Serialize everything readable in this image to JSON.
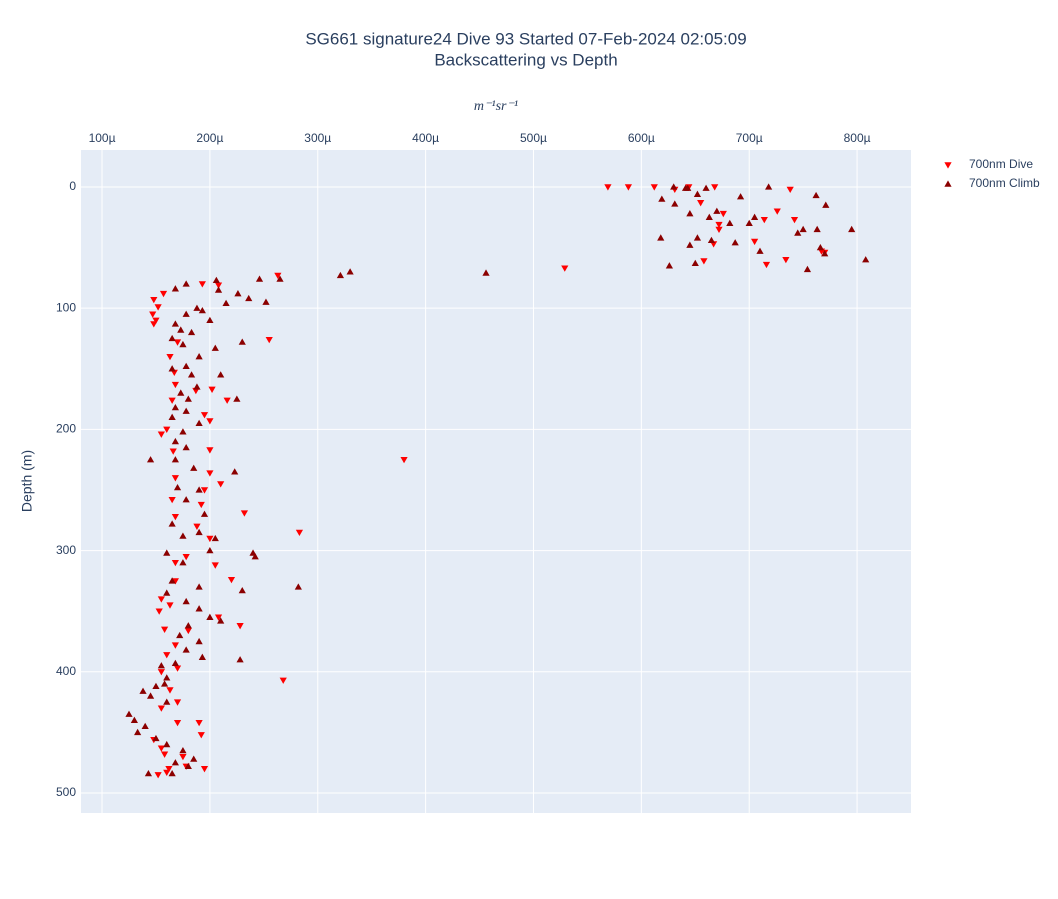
{
  "chart_data": {
    "type": "scatter",
    "title": "SG661 signature24 Dive 93 Started 07-Feb-2024 02:05:09",
    "subtitle": "Backscattering vs Depth",
    "x_label": "m⁻¹sr⁻¹",
    "y_label": "Depth (m)",
    "x_axis_side": "top",
    "y_reversed": true,
    "grid": true,
    "legend_position": "right",
    "xlim": [
      8.05e-05,
      0.00085
    ],
    "ylim": [
      -30.5,
      516.5
    ],
    "xticks": [
      {
        "value": 0.0001,
        "label": "100µ"
      },
      {
        "value": 0.0002,
        "label": "200µ"
      },
      {
        "value": 0.0003,
        "label": "300µ"
      },
      {
        "value": 0.0004,
        "label": "400µ"
      },
      {
        "value": 0.0005,
        "label": "500µ"
      },
      {
        "value": 0.0006,
        "label": "600µ"
      },
      {
        "value": 0.0007,
        "label": "700µ"
      },
      {
        "value": 0.0008,
        "label": "800µ"
      }
    ],
    "yticks": [
      0,
      100,
      200,
      300,
      400,
      500
    ],
    "series": [
      {
        "name": "700nm Dive",
        "color": "#ff0000",
        "marker": "triangle-down",
        "x": [
          0.000569,
          0.000588,
          0.000612,
          0.000631,
          0.000644,
          0.000668,
          0.000738,
          0.000655,
          0.000676,
          0.000714,
          0.000742,
          0.000726,
          0.000672,
          0.000672,
          0.000705,
          0.000716,
          0.000734,
          0.00077,
          0.000767,
          0.000667,
          0.000658,
          0.000529,
          0.000263,
          0.000193,
          0.000208,
          0.000148,
          0.000157,
          0.000152,
          0.000147,
          0.00015,
          0.000148,
          0.000255,
          0.00017,
          0.000163,
          0.000167,
          0.000168,
          0.000187,
          0.000202,
          0.000165,
          0.000195,
          0.000216,
          0.0002,
          0.00016,
          0.000155,
          0.000166,
          0.0002,
          0.0002,
          0.000168,
          0.000195,
          0.00021,
          0.000165,
          0.000192,
          0.000232,
          0.000168,
          0.000188,
          0.0002,
          0.000283,
          0.000168,
          0.000178,
          0.000205,
          0.000168,
          0.00022,
          0.000155,
          0.000163,
          0.000153,
          0.000208,
          0.000228,
          0.000158,
          0.00018,
          0.000168,
          0.00016,
          0.00017,
          0.000155,
          0.000268,
          0.000163,
          0.00017,
          0.000155,
          0.00017,
          0.00019,
          0.000192,
          0.000148,
          0.000155,
          0.000158,
          0.000175,
          0.000195,
          0.00016,
          0.000178,
          0.000152,
          0.000162,
          0.00038
        ],
        "y": [
          0,
          0,
          0,
          2,
          0,
          0,
          2,
          13,
          22,
          27,
          27,
          20,
          31,
          35,
          45,
          64,
          60,
          54,
          53,
          47,
          61,
          67,
          73,
          80,
          81,
          93,
          88,
          99,
          105,
          110,
          113,
          126,
          128,
          140,
          153,
          163,
          168,
          167,
          176,
          188,
          176,
          193,
          200,
          204,
          218,
          217,
          236,
          240,
          250,
          245,
          258,
          262,
          269,
          272,
          280,
          290,
          285,
          310,
          305,
          312,
          325,
          324,
          340,
          345,
          350,
          355,
          362,
          365,
          366,
          378,
          386,
          397,
          400,
          407,
          415,
          425,
          430,
          442,
          442,
          452,
          456,
          463,
          468,
          470,
          480,
          483,
          478,
          485,
          480,
          225
        ]
      },
      {
        "name": "700nm Climb",
        "color": "#8b0000",
        "marker": "triangle-up",
        "x": [
          0.00063,
          0.000641,
          0.000643,
          0.00066,
          0.000718,
          0.000692,
          0.000652,
          0.000619,
          0.000631,
          0.000645,
          0.00067,
          0.000663,
          0.000705,
          0.000682,
          0.000762,
          0.000771,
          0.000763,
          0.000745,
          0.00075,
          0.000795,
          0.000808,
          0.000766,
          0.00077,
          0.0007,
          0.000652,
          0.000645,
          0.000618,
          0.000626,
          0.000665,
          0.000687,
          0.00071,
          0.000754,
          0.00065,
          0.000456,
          0.000321,
          0.000246,
          0.000265,
          0.000206,
          0.000208,
          0.000178,
          0.000168,
          0.000226,
          0.000236,
          0.000252,
          0.000215,
          0.000188,
          0.000178,
          0.000193,
          0.0002,
          0.000168,
          0.000173,
          0.000183,
          0.000165,
          0.000175,
          0.000205,
          0.00023,
          0.00019,
          0.000178,
          0.000165,
          0.000183,
          0.00021,
          0.000188,
          0.000173,
          0.00018,
          0.000225,
          0.000168,
          0.000178,
          0.000165,
          0.00019,
          0.000175,
          0.000168,
          0.000178,
          0.000168,
          0.000145,
          0.000223,
          0.000185,
          0.00017,
          0.00019,
          0.000178,
          0.000195,
          0.000165,
          0.00019,
          0.000205,
          0.000175,
          0.0002,
          0.00024,
          0.000242,
          0.00016,
          0.000175,
          0.000165,
          0.00019,
          0.000282,
          0.00023,
          0.00016,
          0.000178,
          0.00019,
          0.0002,
          0.00021,
          0.00018,
          0.000172,
          0.00019,
          0.000178,
          0.000193,
          0.000228,
          0.000155,
          0.000168,
          0.00016,
          0.000158,
          0.00015,
          0.000138,
          0.000145,
          0.00016,
          0.000125,
          0.00013,
          0.00014,
          0.000133,
          0.00015,
          0.00016,
          0.000185,
          0.000168,
          0.000143,
          0.00018,
          0.000165,
          0.000175,
          0.00033
        ],
        "y": [
          0,
          1,
          1,
          1,
          0,
          8,
          6,
          10,
          14,
          22,
          20,
          25,
          25,
          30,
          7,
          15,
          35,
          38,
          35,
          35,
          60,
          50,
          55,
          30,
          42,
          48,
          42,
          65,
          44,
          46,
          53,
          68,
          63,
          71,
          73,
          76,
          76,
          77,
          85,
          80,
          84,
          88,
          92,
          95,
          96,
          100,
          105,
          102,
          110,
          113,
          118,
          120,
          125,
          130,
          133,
          128,
          140,
          148,
          150,
          155,
          155,
          165,
          170,
          175,
          175,
          182,
          185,
          190,
          195,
          202,
          210,
          215,
          225,
          225,
          235,
          232,
          248,
          250,
          258,
          270,
          278,
          285,
          290,
          288,
          300,
          302,
          305,
          302,
          310,
          325,
          330,
          330,
          333,
          335,
          342,
          348,
          355,
          358,
          362,
          370,
          375,
          382,
          388,
          390,
          395,
          393,
          405,
          410,
          412,
          416,
          420,
          425,
          435,
          440,
          445,
          450,
          455,
          460,
          472,
          475,
          484,
          478,
          484,
          465,
          70
        ]
      }
    ]
  }
}
